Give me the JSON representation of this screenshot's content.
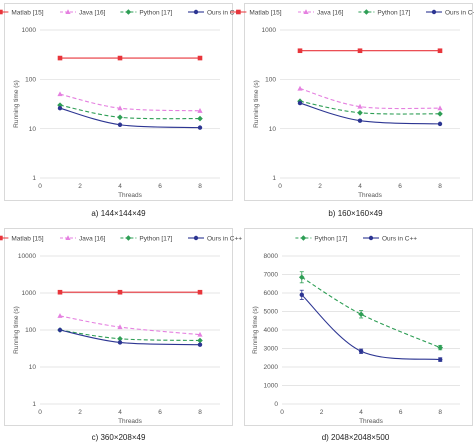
{
  "colors": {
    "matlab": "#e8353b",
    "java": "#e580e0",
    "python": "#2e9e55",
    "ours": "#2c3592",
    "grid": "#dcdcdc",
    "axis_text": "#555555"
  },
  "chart_data": [
    {
      "type": "line",
      "caption": "a) 144×144×49",
      "xlabel": "Threads",
      "ylabel": "Running time (s)",
      "yscale": "log",
      "xlim": [
        0,
        9
      ],
      "ylim": [
        1,
        1000
      ],
      "x_ticks": [
        "0",
        "2",
        "4",
        "6",
        "8"
      ],
      "y_ticks": [
        "1",
        "10",
        "100",
        "1000"
      ],
      "legend_position": "top",
      "series": [
        {
          "name": "Matlab [15]",
          "color_key": "matlab",
          "dash": "solid",
          "marker": "square",
          "x": [
            1,
            4,
            8
          ],
          "y": [
            270,
            270,
            270
          ]
        },
        {
          "name": "Java [16]",
          "color_key": "java",
          "dash": "dash",
          "marker": "triangle",
          "x": [
            1,
            4,
            8
          ],
          "y": [
            50,
            26,
            23
          ]
        },
        {
          "name": "Python [17]",
          "color_key": "python",
          "dash": "dash",
          "marker": "diamond",
          "x": [
            1,
            4,
            8
          ],
          "y": [
            30,
            17,
            16
          ]
        },
        {
          "name": "Ours in C++",
          "color_key": "ours",
          "dash": "solid",
          "marker": "circle",
          "x": [
            1,
            4,
            8
          ],
          "y": [
            26,
            12,
            10.5
          ]
        }
      ]
    },
    {
      "type": "line",
      "caption": "b) 160×160×49",
      "xlabel": "Threads",
      "ylabel": "Running time (s)",
      "yscale": "log",
      "xlim": [
        0,
        9
      ],
      "ylim": [
        1,
        1000
      ],
      "x_ticks": [
        "0",
        "2",
        "4",
        "6",
        "8"
      ],
      "y_ticks": [
        "1",
        "10",
        "100",
        "1000"
      ],
      "legend_position": "top",
      "series": [
        {
          "name": "Matlab [15]",
          "color_key": "matlab",
          "dash": "solid",
          "marker": "square",
          "x": [
            1,
            4,
            8
          ],
          "y": [
            380,
            380,
            380
          ]
        },
        {
          "name": "Java [16]",
          "color_key": "java",
          "dash": "dash",
          "marker": "triangle",
          "x": [
            1,
            4,
            8
          ],
          "y": [
            65,
            28,
            26
          ]
        },
        {
          "name": "Python [17]",
          "color_key": "python",
          "dash": "dash",
          "marker": "diamond",
          "x": [
            1,
            4,
            8
          ],
          "y": [
            36,
            21,
            20
          ]
        },
        {
          "name": "Ours in C++",
          "color_key": "ours",
          "dash": "solid",
          "marker": "circle",
          "x": [
            1,
            4,
            8
          ],
          "y": [
            33,
            14.5,
            12.5
          ]
        }
      ]
    },
    {
      "type": "line",
      "caption": "c) 360×208×49",
      "xlabel": "Threads",
      "ylabel": "Running time (s)",
      "yscale": "log",
      "xlim": [
        0,
        9
      ],
      "ylim": [
        1,
        10000
      ],
      "x_ticks": [
        "0",
        "2",
        "4",
        "6",
        "8"
      ],
      "y_ticks": [
        "1",
        "10",
        "100",
        "1000",
        "10000"
      ],
      "legend_position": "top",
      "series": [
        {
          "name": "Matlab [15]",
          "color_key": "matlab",
          "dash": "solid",
          "marker": "square",
          "x": [
            1,
            4,
            8
          ],
          "y": [
            1050,
            1050,
            1050
          ]
        },
        {
          "name": "Java [16]",
          "color_key": "java",
          "dash": "dash",
          "marker": "triangle",
          "x": [
            1,
            4,
            8
          ],
          "y": [
            240,
            120,
            75
          ]
        },
        {
          "name": "Python [17]",
          "color_key": "python",
          "dash": "dash",
          "marker": "diamond",
          "x": [
            1,
            4,
            8
          ],
          "y": [
            100,
            58,
            52
          ]
        },
        {
          "name": "Ours in C++",
          "color_key": "ours",
          "dash": "solid",
          "marker": "circle",
          "x": [
            1,
            4,
            8
          ],
          "y": [
            100,
            46,
            40
          ]
        }
      ]
    },
    {
      "type": "line",
      "caption": "d) 2048×2048×500",
      "xlabel": "Threads",
      "ylabel": "Running time (s)",
      "yscale": "linear",
      "xlim": [
        0,
        9
      ],
      "ylim": [
        0,
        8000
      ],
      "x_ticks": [
        "0",
        "2",
        "4",
        "6",
        "8"
      ],
      "y_ticks": [
        "0",
        "1000",
        "2000",
        "3000",
        "4000",
        "5000",
        "6000",
        "7000",
        "8000"
      ],
      "legend_position": "top",
      "error_bars": true,
      "series": [
        {
          "name": "Python [17]",
          "color_key": "python",
          "dash": "dash",
          "marker": "diamond",
          "x": [
            1,
            4,
            8
          ],
          "y": [
            6850,
            4850,
            3050
          ],
          "err": [
            300,
            200,
            120
          ]
        },
        {
          "name": "Ours in C++",
          "color_key": "ours",
          "dash": "solid",
          "marker": "circle",
          "x": [
            1,
            4,
            8
          ],
          "y": [
            5900,
            2850,
            2400
          ],
          "err": [
            250,
            120,
            100
          ]
        }
      ]
    }
  ]
}
